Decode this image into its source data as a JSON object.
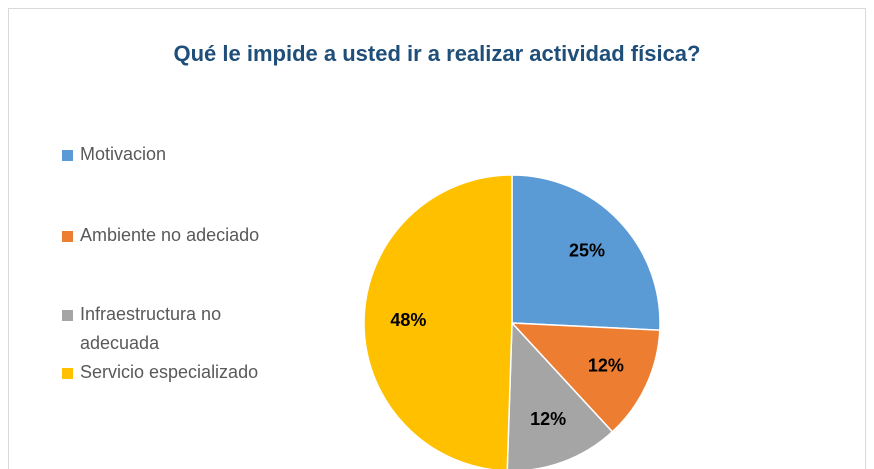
{
  "chart_data": {
    "type": "pie",
    "title": "Qué le impide a usted ir a realizar actividad física?",
    "categories": [
      "Motivacion",
      "Ambiente no adeciado",
      "Infraestructura no adecuada",
      "Servicio especializado"
    ],
    "values": [
      25,
      12,
      12,
      48
    ],
    "value_labels": [
      "25%",
      "12%",
      "12%",
      "48%"
    ],
    "colors": [
      "#5b9bd5",
      "#ed7d31",
      "#a5a5a5",
      "#ffc000"
    ],
    "legend": "left"
  }
}
